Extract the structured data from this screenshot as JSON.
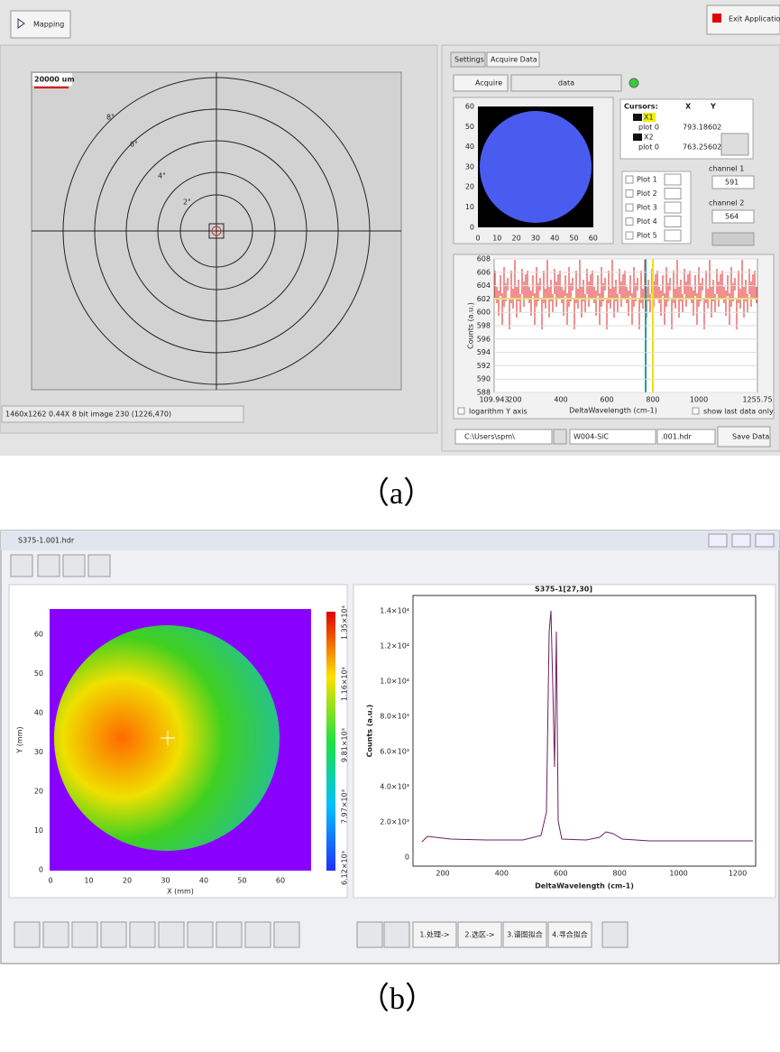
{
  "panel_a": {
    "mapping_button": "Mapping",
    "exit_button": "Exit Application",
    "map": {
      "scale_label": "20000 um",
      "rings": [
        "8\"",
        "6\"",
        "4\"",
        "2\""
      ],
      "status": "1460x1262 0.44X 8 bit image 230   (1226,470)"
    },
    "tabs": [
      "Settings",
      "Acquire Data"
    ],
    "acquire_button": "Acquire",
    "data_dropdown": "data",
    "image_plot": {
      "yticks": [
        "60",
        "50",
        "40",
        "30",
        "20",
        "10",
        "0"
      ],
      "xticks": [
        "0",
        "10",
        "20",
        "30",
        "40",
        "50",
        "60"
      ]
    },
    "cursors": {
      "headers": [
        "Cursors:",
        "X",
        "Y"
      ],
      "rows": [
        [
          "X1",
          "",
          ""
        ],
        [
          "plot 0",
          "793.18",
          "602"
        ],
        [
          "X2",
          "",
          ""
        ],
        [
          "plot 0",
          "763.25",
          "602"
        ]
      ]
    },
    "plots": [
      "Plot 1",
      "Plot 2",
      "Plot 3",
      "Plot 4",
      "Plot 5"
    ],
    "channel1": {
      "label": "channel 1",
      "value": "591"
    },
    "channel2": {
      "label": "channel 2",
      "value": "564"
    },
    "spectrum": {
      "yticks": [
        "608",
        "606",
        "604",
        "602",
        "600",
        "598",
        "596",
        "594",
        "592",
        "590",
        "588"
      ],
      "xticks": [
        "109.943",
        "200",
        "400",
        "600",
        "800",
        "1000",
        "1255.75"
      ],
      "ylabel": "Counts (a.u.)",
      "xlabel": "DeltaWavelength (cm-1)",
      "log_checkbox": "logarithm Y axis",
      "last_checkbox": "show last data only"
    },
    "path": "C:\\Users\\spm\\",
    "filename": "W004-SiC",
    "extension": ".001.hdr",
    "save_button": "Save Data"
  },
  "caption_a": "（a）",
  "panel_b": {
    "window_title": "S375-1.001.hdr",
    "map": {
      "yticks": [
        "60",
        "50",
        "40",
        "30",
        "20",
        "10",
        "0"
      ],
      "xticks": [
        "0",
        "10",
        "20",
        "30",
        "40",
        "50",
        "60"
      ],
      "xlabel": "X (mm)",
      "ylabel": "Y (mm)",
      "colorbar": [
        "1.35×10⁴",
        "1.16×10⁴",
        "9.81×10³",
        "7.97×10³",
        "6.12×10³"
      ]
    },
    "spectrum": {
      "title": "S375-1[27,30]",
      "yticks": [
        "1.4×10⁴",
        "1.2×10⁴",
        "1.0×10⁴",
        "8.0×10³",
        "6.0×10³",
        "4.0×10³",
        "2.0×10³",
        "0"
      ],
      "xticks": [
        "200",
        "400",
        "600",
        "800",
        "1000",
        "1200"
      ],
      "ylabel": "Counts (a.u.)",
      "xlabel": "DeltaWavelength (cm-1)"
    },
    "buttons": [
      "1.处理->",
      "2.选区->",
      "3.谱图拟合",
      "4.寻合拟合"
    ]
  },
  "caption_b": "（b）"
}
